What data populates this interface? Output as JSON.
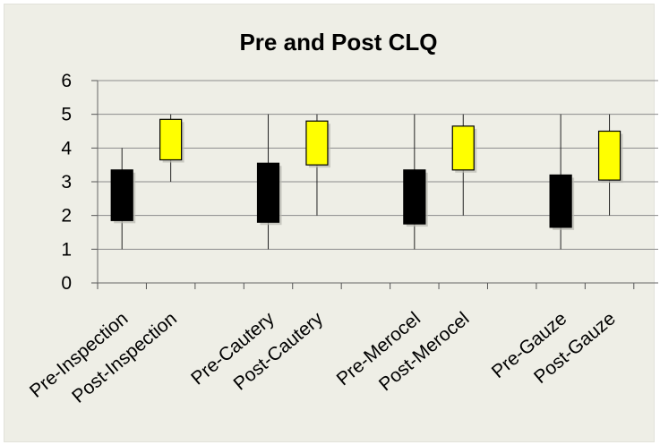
{
  "chart_data": {
    "type": "box",
    "title": "Pre and Post CLQ",
    "xlabel": "",
    "ylabel": "",
    "ylim": [
      0,
      6
    ],
    "yticks": [
      "0",
      "1",
      "2",
      "3",
      "4",
      "5",
      "6"
    ],
    "grid": true,
    "categories": [
      "Pre-Inspection",
      "Post-Inspection",
      "Pre-Cautery",
      "Post-Cautery",
      "Pre-Merocel",
      "Post-Merocel",
      "Pre-Gauze",
      "Post-Gauze"
    ],
    "boxes": [
      {
        "label": "Pre-Inspection",
        "min": 1,
        "q1": 1.85,
        "q3": 3.35,
        "max": 4,
        "color": "#000000"
      },
      {
        "label": "Post-Inspection",
        "min": 3,
        "q1": 3.65,
        "q3": 4.85,
        "max": 5,
        "color": "#ffff00"
      },
      {
        "label": "Pre-Cautery",
        "min": 1,
        "q1": 1.8,
        "q3": 3.55,
        "max": 5,
        "color": "#000000"
      },
      {
        "label": "Post-Cautery",
        "min": 2,
        "q1": 3.5,
        "q3": 4.8,
        "max": 5,
        "color": "#ffff00"
      },
      {
        "label": "Pre-Merocel",
        "min": 1,
        "q1": 1.75,
        "q3": 3.35,
        "max": 5,
        "color": "#000000"
      },
      {
        "label": "Post-Merocel",
        "min": 2,
        "q1": 3.35,
        "q3": 4.65,
        "max": 5,
        "color": "#ffff00"
      },
      {
        "label": "Pre-Gauze",
        "min": 1,
        "q1": 1.65,
        "q3": 3.2,
        "max": 5,
        "color": "#000000"
      },
      {
        "label": "Post-Gauze",
        "min": 2,
        "q1": 3.05,
        "q3": 4.5,
        "max": 5,
        "color": "#ffff00"
      }
    ]
  }
}
